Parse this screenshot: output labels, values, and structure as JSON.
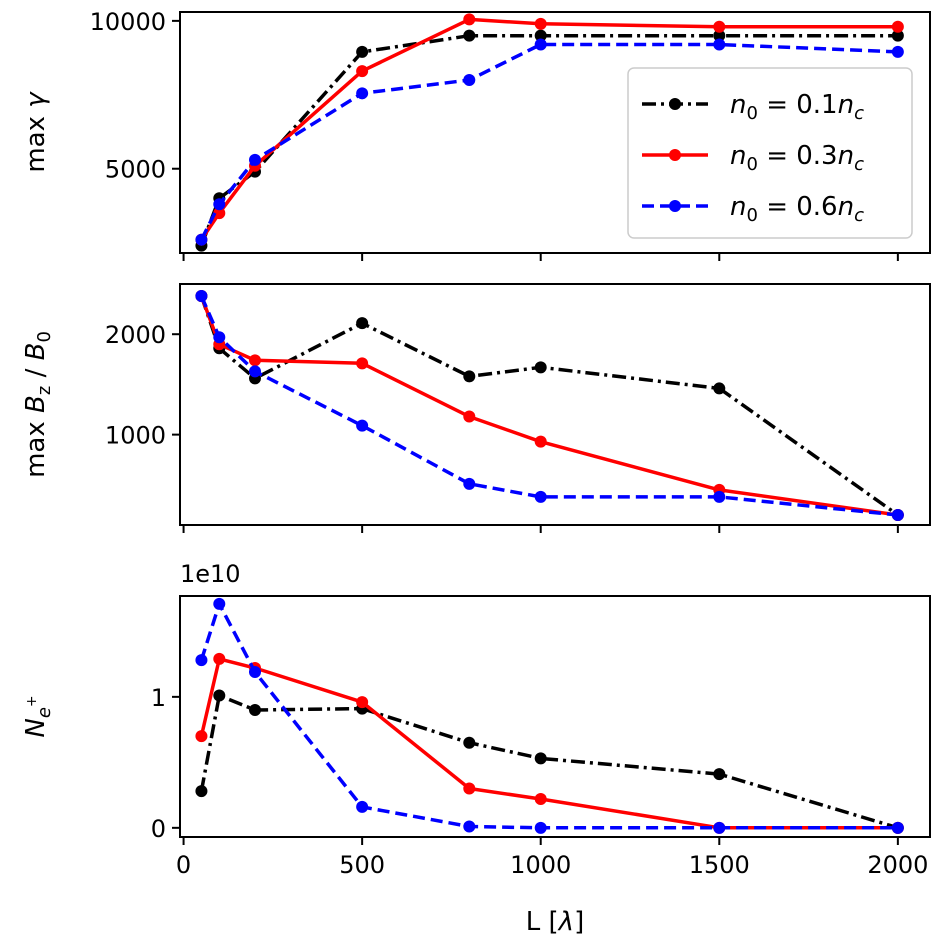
{
  "chart_data": {
    "type": "line",
    "x": [
      50,
      100,
      200,
      500,
      800,
      1000,
      1500,
      2000
    ],
    "xlabel": "L [λ]",
    "xlim": [
      -10,
      2090
    ],
    "xticks": [
      0,
      500,
      1000,
      1500,
      2000
    ],
    "xtick_labels": [
      "0",
      "500",
      "1000",
      "1500",
      "2000"
    ],
    "legend": [
      {
        "name": "n_0 = 0.1n_c",
        "base": "n",
        "sub1": "0",
        "mid": " = 0.1",
        "base2": "n",
        "sub2": "c",
        "color": "#000000",
        "style": "dashdot"
      },
      {
        "name": "n_0 = 0.3n_c",
        "base": "n",
        "sub1": "0",
        "mid": " = 0.3",
        "base2": "n",
        "sub2": "c",
        "color": "#ff0000",
        "style": "solid"
      },
      {
        "name": "n_0 = 0.6n_c",
        "base": "n",
        "sub1": "0",
        "mid": " = 0.6",
        "base2": "n",
        "sub2": "c",
        "color": "#0000ff",
        "style": "dashed"
      }
    ],
    "panels": [
      {
        "ylabel": "max γ",
        "ylim": [
          2150,
          10300
        ],
        "yticks": [
          5000,
          10000
        ],
        "ytick_labels": [
          "5000",
          "10000"
        ],
        "offset_text": "",
        "legend_position": "center-right",
        "series": [
          {
            "name": "n_0 = 0.1n_c",
            "values": [
              2400,
              4000,
              4900,
              8950,
              9500,
              9500,
              9500,
              9500
            ]
          },
          {
            "name": "n_0 = 0.3n_c",
            "values": [
              2600,
              3500,
              5100,
              8300,
              10050,
              9900,
              9800,
              9800
            ]
          },
          {
            "name": "n_0 = 0.6n_c",
            "values": [
              2600,
              3800,
              5300,
              7550,
              8000,
              9200,
              9200,
              8950
            ]
          }
        ]
      },
      {
        "ylabel": "max B_z / B_0",
        "ylim": [
          100,
          2500
        ],
        "yticks": [
          1000,
          2000
        ],
        "ytick_labels": [
          "1000",
          "2000"
        ],
        "offset_text": "",
        "series": [
          {
            "name": "n_0 = 0.1n_c",
            "values": [
              2380,
              1860,
              1560,
              2110,
              1580,
              1670,
              1460,
              200
            ]
          },
          {
            "name": "n_0 = 0.3n_c",
            "values": [
              2380,
              1900,
              1740,
              1710,
              1180,
              930,
              450,
              200
            ]
          },
          {
            "name": "n_0 = 0.6n_c",
            "values": [
              2380,
              1970,
              1630,
              1090,
              510,
              380,
              380,
              200
            ]
          }
        ]
      },
      {
        "ylabel": "N_e+",
        "ylim": [
          -0.07,
          1.77
        ],
        "yticks": [
          0,
          1
        ],
        "ytick_labels": [
          "0",
          "1"
        ],
        "offset_text": "1e10",
        "series": [
          {
            "name": "n_0 = 0.1n_c",
            "values": [
              0.28,
              1.01,
              0.9,
              0.91,
              0.65,
              0.53,
              0.41,
              0.0
            ]
          },
          {
            "name": "n_0 = 0.3n_c",
            "values": [
              0.7,
              1.29,
              1.22,
              0.96,
              0.3,
              0.22,
              0.0,
              0.0
            ]
          },
          {
            "name": "n_0 = 0.6n_c",
            "values": [
              1.28,
              1.71,
              1.19,
              0.16,
              0.01,
              0.0,
              0.0,
              0.0
            ]
          }
        ]
      }
    ]
  }
}
